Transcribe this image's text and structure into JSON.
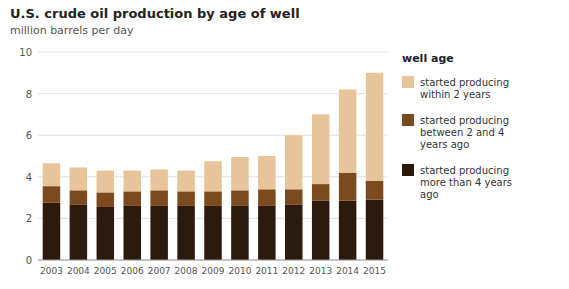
{
  "chart_data": {
    "type": "bar",
    "stacked": true,
    "title": "U.S. crude oil production by age of well",
    "subtitle": "million barrels per day",
    "legend_title": "well age",
    "categories": [
      "2003",
      "2004",
      "2005",
      "2006",
      "2007",
      "2008",
      "2009",
      "2010",
      "2011",
      "2012",
      "2013",
      "2014",
      "2015"
    ],
    "series": [
      {
        "name": "started producing\nmore than 4 years\nago",
        "color": "#2d1a0e",
        "values": [
          2.75,
          2.65,
          2.55,
          2.6,
          2.6,
          2.6,
          2.6,
          2.6,
          2.6,
          2.65,
          2.85,
          2.85,
          2.9
        ]
      },
      {
        "name": "started producing\nbetween 2 and 4\nyears ago",
        "color": "#7b4a1e",
        "values": [
          0.8,
          0.7,
          0.7,
          0.7,
          0.75,
          0.7,
          0.7,
          0.75,
          0.8,
          0.75,
          0.8,
          1.35,
          0.9
        ]
      },
      {
        "name": "started producing\nwithin 2 years",
        "color": "#e8c49a",
        "values": [
          1.1,
          1.1,
          1.05,
          1.0,
          1.0,
          1.0,
          1.45,
          1.6,
          1.6,
          2.6,
          3.35,
          4.0,
          5.2
        ]
      }
    ],
    "ylim": [
      0,
      10
    ],
    "yticks": [
      0,
      2,
      4,
      6,
      8,
      10
    ],
    "grid": true
  }
}
